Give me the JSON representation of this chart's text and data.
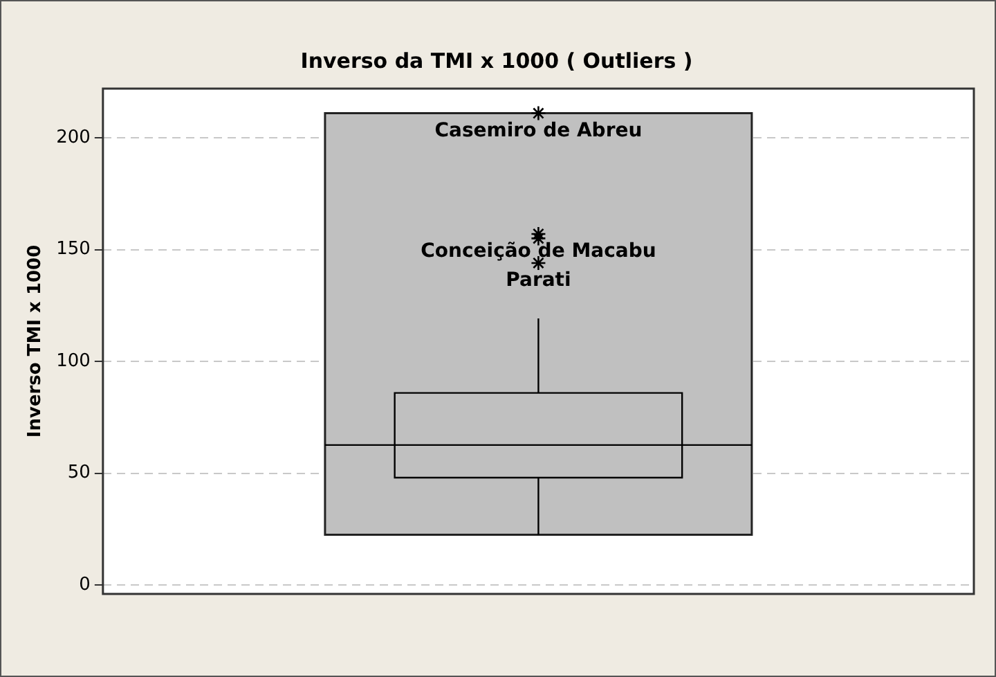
{
  "chart_data": {
    "type": "box",
    "title": "Inverso da TMI x 1000 ( Outliers )",
    "ylabel": "Inverso TMI x 1000",
    "categories": [
      null
    ],
    "boxes": [
      {
        "low": 22.5,
        "q1": 48,
        "median": 62.6,
        "q3": 85.9,
        "high": 119.2,
        "outliers": [
          211,
          157,
          144,
          155
        ]
      }
    ],
    "ylim": [
      -4,
      222
    ],
    "yticks": [
      0,
      50,
      100,
      150,
      200
    ],
    "grid": "y",
    "tick_labels": "y",
    "marker": "star",
    "color": "#c0c0c0",
    "bands": [
      {
        "axis": "y",
        "from": 22.5,
        "to": 211,
        "color": "#c0c0c0"
      }
    ],
    "ref_lines": [
      {
        "axis": "y",
        "value": 62.6,
        "color": "#000000"
      }
    ],
    "annotations": [
      "Casemiro de Abreu",
      "Conceição de Macabu",
      "Parati"
    ]
  }
}
